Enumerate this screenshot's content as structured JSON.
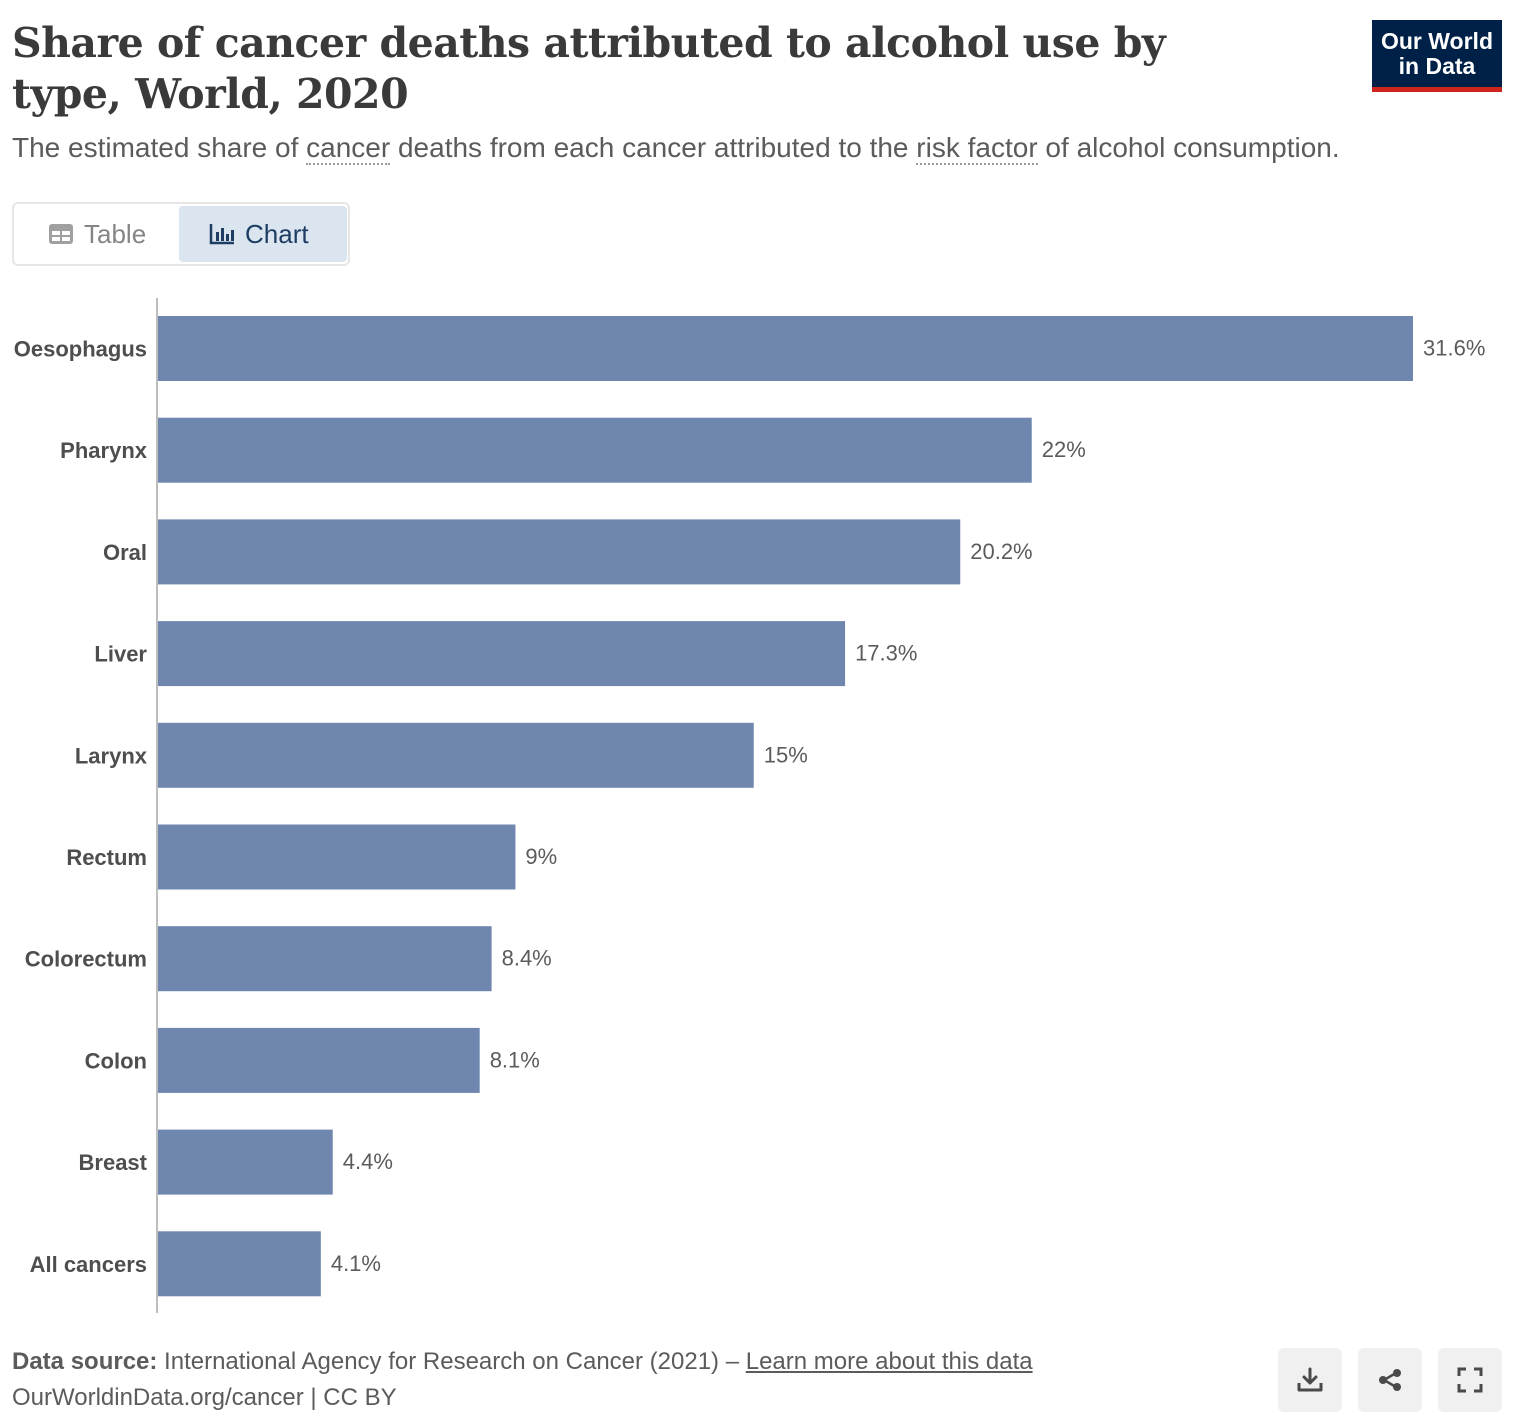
{
  "header": {
    "title": "Share of cancer deaths attributed to alcohol use by type, World, 2020",
    "subtitle_pre": "The estimated share of ",
    "subtitle_link1": "cancer",
    "subtitle_mid": " deaths from each cancer attributed to the ",
    "subtitle_link2": "risk factor",
    "subtitle_post": " of alcohol consumption.",
    "logo_line1": "Our World",
    "logo_line2": "in Data"
  },
  "tabs": {
    "table_label": "Table",
    "chart_label": "Chart"
  },
  "colors": {
    "bar": "#6f87af",
    "axis": "#bdbdbd",
    "logo_bg": "#002147",
    "logo_accent": "#ce261e"
  },
  "chart_data": {
    "type": "bar",
    "orientation": "horizontal",
    "title": "Share of cancer deaths attributed to alcohol use by type, World, 2020",
    "categories": [
      "Oesophagus",
      "Pharynx",
      "Oral",
      "Liver",
      "Larynx",
      "Rectum",
      "Colorectum",
      "Colon",
      "Breast",
      "All cancers"
    ],
    "values": [
      31.6,
      22,
      20.2,
      17.3,
      15,
      9,
      8.4,
      8.1,
      4.4,
      4.1
    ],
    "value_labels": [
      "31.6%",
      "22%",
      "20.2%",
      "17.3%",
      "15%",
      "9%",
      "8.4%",
      "8.1%",
      "4.4%",
      "4.1%"
    ],
    "unit": "%",
    "xlim": [
      0,
      31.6
    ],
    "xlabel": "",
    "ylabel": "",
    "grid": false
  },
  "footer": {
    "source_label": "Data source:",
    "source_text": " International Agency for Research on Cancer (2021) – ",
    "learn_more": "Learn more about this data",
    "url": "OurWorldinData.org/cancer | CC BY"
  },
  "icons": {
    "download": "download-icon",
    "share": "share-icon",
    "fullscreen": "fullscreen-icon"
  }
}
